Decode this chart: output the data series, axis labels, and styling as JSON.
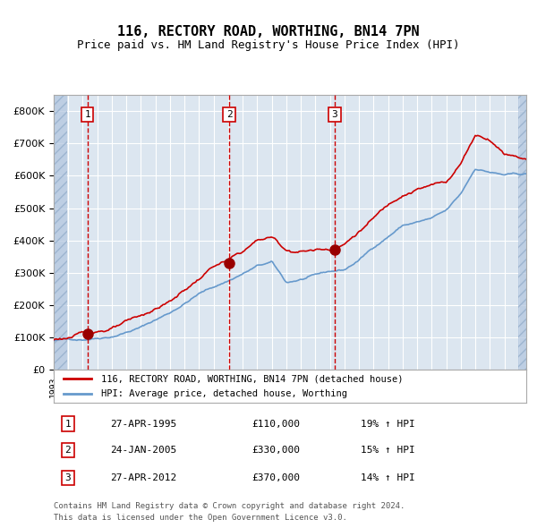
{
  "title": "116, RECTORY ROAD, WORTHING, BN14 7PN",
  "subtitle": "Price paid vs. HM Land Registry's House Price Index (HPI)",
  "footer1": "Contains HM Land Registry data © Crown copyright and database right 2024.",
  "footer2": "This data is licensed under the Open Government Licence v3.0.",
  "legend_line1": "116, RECTORY ROAD, WORTHING, BN14 7PN (detached house)",
  "legend_line2": "HPI: Average price, detached house, Worthing",
  "transactions": [
    {
      "num": 1,
      "date": "27-APR-1995",
      "price": 110000,
      "pct": "19%",
      "dir": "↑",
      "year": 1995.32
    },
    {
      "num": 2,
      "date": "24-JAN-2005",
      "price": 330000,
      "pct": "15%",
      "dir": "↑",
      "year": 2005.07
    },
    {
      "num": 3,
      "date": "27-APR-2012",
      "price": 370000,
      "pct": "14%",
      "dir": "↑",
      "year": 2012.32
    }
  ],
  "hpi_color": "#6699cc",
  "price_color": "#cc0000",
  "vline_color": "#cc0000",
  "marker_color": "#990000",
  "plot_bg": "#dce6f0",
  "hatch_color": "#b0c4de",
  "grid_color": "#ffffff",
  "ylim": [
    0,
    850000
  ],
  "yticks": [
    0,
    100000,
    200000,
    300000,
    400000,
    500000,
    600000,
    700000,
    800000
  ],
  "xlim_start": 1993.0,
  "xlim_end": 2025.5
}
